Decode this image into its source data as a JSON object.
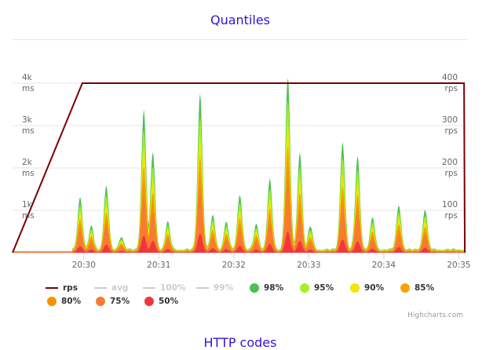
{
  "chart_data": {
    "type": "area",
    "title": "Quantiles",
    "x_ticks": [
      "20:30",
      "20:31",
      "20:32",
      "20:33",
      "20:34",
      "20:35"
    ],
    "y_left_ticks": [
      {
        "value": "1k",
        "unit": "ms"
      },
      {
        "value": "2k",
        "unit": "ms"
      },
      {
        "value": "3k",
        "unit": "ms"
      },
      {
        "value": "4k",
        "unit": "ms"
      }
    ],
    "y_right_ticks": [
      {
        "value": "100",
        "unit": "rps"
      },
      {
        "value": "200",
        "unit": "rps"
      },
      {
        "value": "300",
        "unit": "rps"
      },
      {
        "value": "400",
        "unit": "rps"
      }
    ],
    "y_left_range_ms": [
      0,
      4000
    ],
    "y_right_range_rps": [
      0,
      400
    ],
    "x_range_min": [
      29.05,
      35.1
    ],
    "grid": true,
    "legend_placement": "bottom",
    "rps": {
      "name": "rps",
      "color": "#7a0000",
      "points": [
        [
          29.05,
          0
        ],
        [
          29.98,
          400
        ],
        [
          35.07,
          400
        ],
        [
          35.08,
          0
        ]
      ]
    },
    "spikes": [
      {
        "t": 29.95,
        "p98": 1250
      },
      {
        "t": 30.1,
        "p98": 550
      },
      {
        "t": 30.3,
        "p98": 1500
      },
      {
        "t": 30.5,
        "p98": 300
      },
      {
        "t": 30.8,
        "p98": 3300
      },
      {
        "t": 30.92,
        "p98": 2300
      },
      {
        "t": 31.12,
        "p98": 650
      },
      {
        "t": 31.55,
        "p98": 3700
      },
      {
        "t": 31.72,
        "p98": 800
      },
      {
        "t": 31.9,
        "p98": 650
      },
      {
        "t": 32.08,
        "p98": 1300
      },
      {
        "t": 32.3,
        "p98": 600
      },
      {
        "t": 32.48,
        "p98": 1650
      },
      {
        "t": 32.72,
        "p98": 4100
      },
      {
        "t": 32.88,
        "p98": 2300
      },
      {
        "t": 33.02,
        "p98": 550
      },
      {
        "t": 33.45,
        "p98": 2550
      },
      {
        "t": 33.65,
        "p98": 2200
      },
      {
        "t": 33.85,
        "p98": 750
      },
      {
        "t": 34.2,
        "p98": 1050
      },
      {
        "t": 34.55,
        "p98": 950
      }
    ],
    "quantiles": [
      {
        "name": "98%",
        "color": "#4cbf55",
        "ratio": 1.0
      },
      {
        "name": "95%",
        "color": "#a6f025",
        "ratio": 0.86
      },
      {
        "name": "90%",
        "color": "#f2e600",
        "ratio": 0.72
      },
      {
        "name": "85%",
        "color": "#f6a500",
        "ratio": 0.6
      },
      {
        "name": "80%",
        "color": "#f89300",
        "ratio": 0.5
      },
      {
        "name": "75%",
        "color": "#fa7a33",
        "ratio": 0.4
      },
      {
        "name": "50%",
        "color": "#f2373a",
        "ratio": 0.12
      }
    ]
  },
  "legend": {
    "row1": [
      {
        "label": "rps",
        "color": "#7a0000",
        "symbol": "line",
        "hidden": false
      },
      {
        "label": "avg",
        "color": "#cccccc",
        "symbol": "line",
        "hidden": true
      },
      {
        "label": "100%",
        "color": "#cccccc",
        "symbol": "line",
        "hidden": true
      },
      {
        "label": "99%",
        "color": "#cccccc",
        "symbol": "line",
        "hidden": true
      },
      {
        "label": "98%",
        "color": "#4cbf55",
        "symbol": "dot",
        "hidden": false
      },
      {
        "label": "95%",
        "color": "#a6f025",
        "symbol": "dot",
        "hidden": false
      },
      {
        "label": "90%",
        "color": "#f2e600",
        "symbol": "dot",
        "hidden": false
      },
      {
        "label": "85%",
        "color": "#f6a500",
        "symbol": "dot",
        "hidden": false
      }
    ],
    "row2": [
      {
        "label": "80%",
        "color": "#f89300",
        "symbol": "dot",
        "hidden": false
      },
      {
        "label": "75%",
        "color": "#fa7a33",
        "symbol": "dot",
        "hidden": false
      },
      {
        "label": "50%",
        "color": "#f2373a",
        "symbol": "dot",
        "hidden": false
      }
    ]
  },
  "credits": "Highcharts.com",
  "next_section_title": "HTTP codes"
}
